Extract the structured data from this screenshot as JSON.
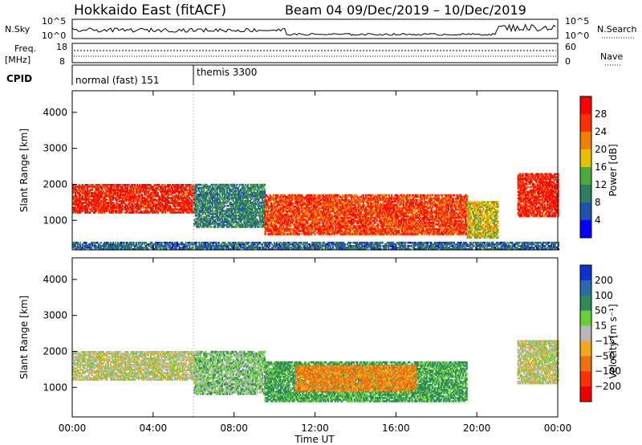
{
  "header": {
    "title": "Hokkaido East (fitACF)",
    "beam_label": "Beam 04",
    "date_range": "09/Dec/2019 – 10/Dec/2019"
  },
  "top_panels": {
    "nsky_label": "N.Sky",
    "nsky_ticks": [
      "10^5",
      "10^0"
    ],
    "nsearch_label": "N.Search",
    "nsearch_ticks": [
      "10^5",
      "10^0"
    ],
    "freq_label_line1": "Freq.",
    "freq_label_line2": "[MHz]",
    "freq_ticks": [
      "18",
      "8"
    ],
    "nave_label": "Nave",
    "nave_ticks": [
      "60",
      "0"
    ],
    "cpid_label": "CPID",
    "cpid_segments": [
      {
        "label": "normal (fast) 151",
        "start_hour": 0
      },
      {
        "label": "themis 3300",
        "start_hour": 6
      }
    ]
  },
  "x_axis": {
    "label": "Time UT",
    "ticks": [
      "00:00",
      "04:00",
      "08:00",
      "12:00",
      "16:00",
      "20:00",
      "00:00"
    ]
  },
  "power_panel": {
    "ylabel": "Slant Range [km]",
    "yticks": [
      "1000",
      "2000",
      "3000",
      "4000"
    ],
    "colorbar_label": "Power [dB]",
    "colorbar_ticks": [
      "4",
      "8",
      "12",
      "16",
      "20",
      "24",
      "28"
    ],
    "colors": [
      "#0000ff",
      "#2050b0",
      "#2e7e5e",
      "#4aab3c",
      "#e8c000",
      "#f08000",
      "#ff3000",
      "#ff0000"
    ]
  },
  "velocity_panel": {
    "ylabel": "Slant Range [km]",
    "yticks": [
      "1000",
      "2000",
      "3000",
      "4000"
    ],
    "colorbar_label": "Velocity [m s⁻¹]",
    "colorbar_ticks": [
      "200",
      "100",
      "50",
      "15",
      "−15",
      "−50",
      "−100",
      "−200"
    ],
    "colors": [
      "#1030d0",
      "#2a6aa8",
      "#2e8b57",
      "#6bcf3a",
      "#b8b8b8",
      "#f2a81a",
      "#f07010",
      "#ff3000",
      "#ee0000"
    ]
  },
  "chart_data": [
    {
      "type": "heatmap",
      "name": "power",
      "x": [
        "00:00",
        "04:00",
        "08:00",
        "12:00",
        "16:00",
        "20:00",
        "00:00"
      ],
      "xlabel": "Time UT",
      "ylabel": "Slant Range [km]",
      "ylim": [
        180,
        4600
      ],
      "zlabel": "Power [dB]",
      "zlim": [
        0,
        32
      ],
      "regions": [
        {
          "t0": 0.0,
          "t1": 6.0,
          "r0": 1200,
          "r1": 2000,
          "power": 28
        },
        {
          "t0": 6.0,
          "t1": 9.5,
          "r0": 800,
          "r1": 2000,
          "power": 10
        },
        {
          "t0": 9.5,
          "t1": 19.5,
          "r0": 600,
          "r1": 1700,
          "power": 26
        },
        {
          "t0": 19.5,
          "t1": 21.0,
          "r0": 500,
          "r1": 1500,
          "power": 18
        },
        {
          "t0": 22.0,
          "t1": 24.0,
          "r0": 1100,
          "r1": 2300,
          "power": 28
        },
        {
          "t0": 0.0,
          "t1": 24.0,
          "r0": 180,
          "r1": 400,
          "power": 8
        }
      ]
    },
    {
      "type": "heatmap",
      "name": "velocity",
      "x": [
        "00:00",
        "04:00",
        "08:00",
        "12:00",
        "16:00",
        "20:00",
        "00:00"
      ],
      "xlabel": "Time UT",
      "ylabel": "Slant Range [km]",
      "ylim": [
        180,
        4600
      ],
      "zlabel": "Velocity [m s⁻¹]",
      "zlim": [
        -250,
        250
      ],
      "regions": [
        {
          "t0": 0.0,
          "t1": 6.0,
          "r0": 1200,
          "r1": 2000,
          "velocity": 0
        },
        {
          "t0": 6.0,
          "t1": 9.5,
          "r0": 800,
          "r1": 2000,
          "velocity": 30
        },
        {
          "t0": 9.5,
          "t1": 19.5,
          "r0": 600,
          "r1": 1700,
          "velocity": 60
        },
        {
          "t0": 11.0,
          "t1": 17.0,
          "r0": 900,
          "r1": 1600,
          "velocity": -60
        },
        {
          "t0": 22.0,
          "t1": 24.0,
          "r0": 1100,
          "r1": 2300,
          "velocity": 0
        }
      ]
    }
  ]
}
